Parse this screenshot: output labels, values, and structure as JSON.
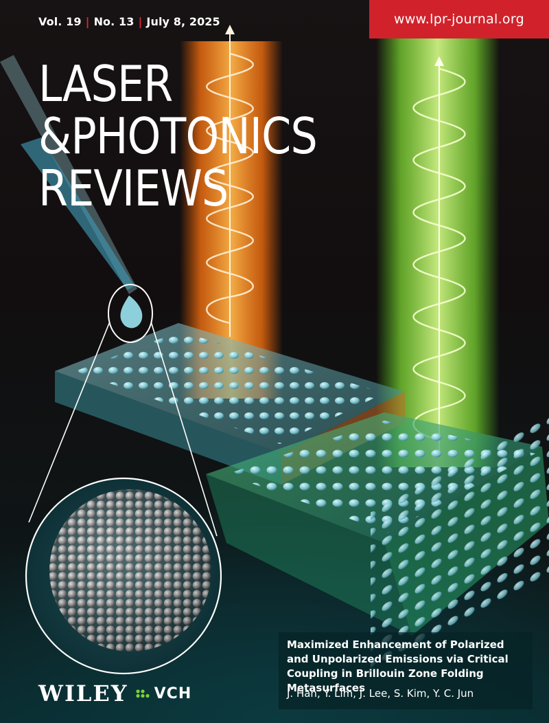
{
  "issue": {
    "volume": "Vol. 19",
    "number": "No. 13",
    "date": "July 8, 2025",
    "separator": "|"
  },
  "journal_url": "www.lpr-journal.org",
  "journal_title": {
    "line1": "LASER",
    "line2": "&PHOTONICS",
    "line3": "REVIEWS"
  },
  "article": {
    "title": "Maximized Enhancement of Polarized and Unpolarized Emissions via Critical Coupling in Brillouin Zone Folding Metasurfaces",
    "authors": "J. Han, Y. Lim, J. Lee, S. Kim, Y. C. Jun"
  },
  "publisher": {
    "name": "WILEY",
    "imprint": "VCH"
  },
  "colors": {
    "accent_red": "#d1222b",
    "orange_beam": "#ff7a1a",
    "green_beam": "#8dff3a",
    "teal_glass": "#3fb5c2"
  },
  "icons": {
    "publisher_mark": "wiley-vch-dots-icon"
  }
}
